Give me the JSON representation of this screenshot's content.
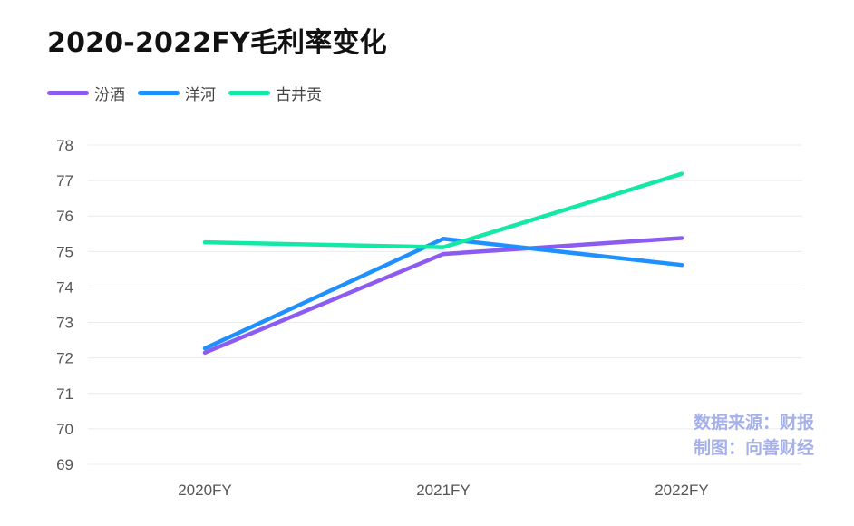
{
  "title": "2020-2022FY毛利率变化",
  "source_note": [
    "数据来源：财报",
    "制图：向善财经"
  ],
  "chart_data": {
    "type": "line",
    "title": "2020-2022FY毛利率变化",
    "categories": [
      "2020FY",
      "2021FY",
      "2022FY"
    ],
    "series": [
      {
        "name": "汾酒",
        "color": "#8c5cf2",
        "values": [
          72.15,
          74.93,
          75.38
        ]
      },
      {
        "name": "洋河",
        "color": "#1e90ff",
        "values": [
          72.27,
          75.36,
          74.62
        ]
      },
      {
        "name": "古井贡",
        "color": "#14e8a6",
        "values": [
          75.26,
          75.12,
          77.19
        ]
      }
    ],
    "ylim": [
      69,
      78
    ],
    "yticks": [
      69,
      70,
      71,
      72,
      73,
      74,
      75,
      76,
      77,
      78
    ],
    "grid": true,
    "legend": "top-left",
    "xlabel": "",
    "ylabel": ""
  }
}
